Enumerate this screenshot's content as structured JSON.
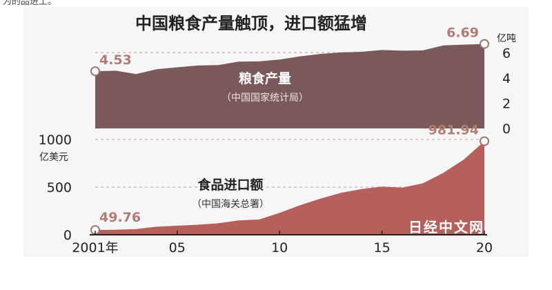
{
  "cropped_top_text": "为的品进土。",
  "chart_data": [
    {
      "type": "area",
      "title": "中国粮食产量触顶，进口额猛增",
      "label": "粮食产量",
      "source": "（中国国家统计局）",
      "unit": "亿吨",
      "x": [
        2001,
        2002,
        2003,
        2004,
        2005,
        2006,
        2007,
        2008,
        2009,
        2010,
        2011,
        2012,
        2013,
        2014,
        2015,
        2016,
        2017,
        2018,
        2019,
        2020
      ],
      "values": [
        4.53,
        4.57,
        4.31,
        4.69,
        4.84,
        4.98,
        5.02,
        5.29,
        5.31,
        5.46,
        5.71,
        5.9,
        6.02,
        6.07,
        6.21,
        6.16,
        6.18,
        6.58,
        6.64,
        6.69
      ],
      "ylim": [
        0,
        7
      ],
      "yticks": [
        0,
        2,
        4,
        6
      ],
      "start_label": "4.53",
      "end_label": "6.69",
      "color": "#7a5a58"
    },
    {
      "type": "area",
      "label": "食品进口额",
      "source": "（中国海关总署）",
      "unit": "亿美元",
      "x": [
        2001,
        2002,
        2003,
        2004,
        2005,
        2006,
        2007,
        2008,
        2009,
        2010,
        2011,
        2012,
        2013,
        2014,
        2015,
        2016,
        2017,
        2018,
        2019,
        2020
      ],
      "values": [
        49.76,
        52,
        60,
        85,
        95,
        105,
        120,
        150,
        160,
        230,
        310,
        380,
        440,
        480,
        505,
        495,
        540,
        650,
        790,
        981.94
      ],
      "ylim": [
        0,
        1000
      ],
      "yticks": [
        0,
        500,
        1000
      ],
      "start_label": "49.76",
      "end_label": "981.94",
      "color": "#b5605c"
    }
  ],
  "x_axis": {
    "ticks": [
      2001,
      2005,
      2010,
      2015,
      2020
    ],
    "tick_labels": [
      "2001年",
      "05",
      "10",
      "15",
      "20"
    ]
  },
  "watermark": "日经中文网"
}
